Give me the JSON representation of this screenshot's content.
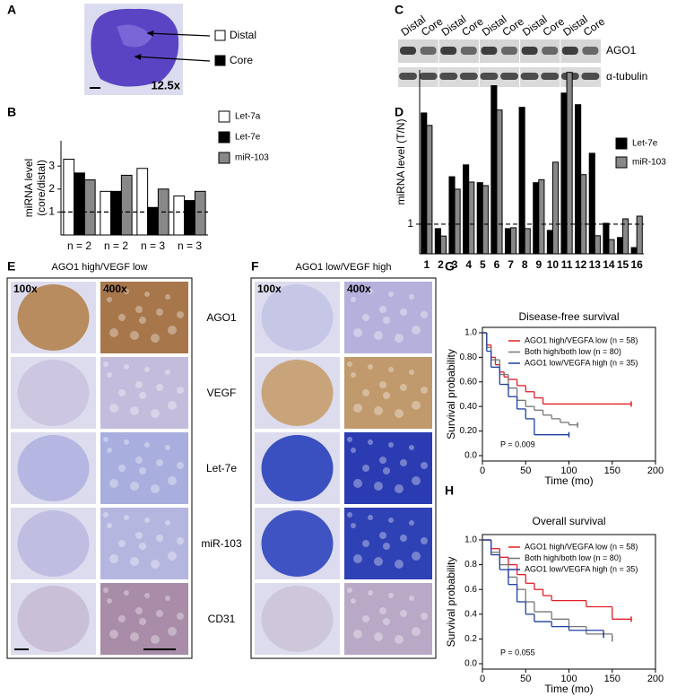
{
  "panel_labels": [
    "A",
    "B",
    "C",
    "D",
    "E",
    "F",
    "G",
    "H"
  ],
  "panel_a": {
    "distal": "Distal",
    "core": "Core",
    "magnification": "12.5x"
  },
  "panel_c": {
    "lanes": [
      "Distal",
      "Core",
      "Distal",
      "Core",
      "Distal",
      "Core",
      "Distal",
      "Core",
      "Distal",
      "Core"
    ],
    "rows": [
      "AGO1",
      "α-tubulin"
    ]
  },
  "panel_e": {
    "title": "AGO1 high/VEGF low",
    "magnifications": [
      "100x",
      "400x"
    ]
  },
  "panel_f": {
    "title": "AGO1 low/VEGF high",
    "magnifications": [
      "100x",
      "400x"
    ]
  },
  "stains": [
    "AGO1",
    "VEGF",
    "Let-7e",
    "miR-103",
    "CD31"
  ],
  "chart_data": [
    {
      "type": "bar",
      "y_label": [
        "miRNA level",
        "(core/distal)"
      ],
      "categories": [
        "n = 2",
        "n = 2",
        "n = 3",
        "n = 3"
      ],
      "series": [
        {
          "name": "Let-7a",
          "color": "#ffffff",
          "values": [
            3.3,
            1.9,
            2.9,
            1.7
          ]
        },
        {
          "name": "Let-7e",
          "color": "#000000",
          "values": [
            2.7,
            1.9,
            1.2,
            1.5
          ]
        },
        {
          "name": "miR-103",
          "color": "#888888",
          "values": [
            2.4,
            2.6,
            2.0,
            1.9
          ]
        }
      ],
      "ylim": [
        0,
        4.1
      ],
      "yticks": [
        1,
        2,
        3
      ],
      "reference_line": 1
    },
    {
      "type": "bar",
      "y_label": [
        "miRNA level (T/N)"
      ],
      "categories": [
        "1",
        "2",
        "3",
        "4",
        "5",
        "6",
        "7",
        "8",
        "9",
        "10",
        "11",
        "12",
        "13",
        "14",
        "15",
        "16"
      ],
      "series": [
        {
          "name": "Let-7e",
          "color": "#000000",
          "values": [
            4.75,
            0.85,
            2.6,
            3.0,
            2.4,
            5.67,
            0.85,
            4.94,
            2.4,
            0.79,
            5.42,
            5.03,
            3.39,
            1.03,
            0.55,
            0.21
          ]
        },
        {
          "name": "miR-103",
          "color": "#888888",
          "values": [
            4.33,
            0.6,
            2.18,
            2.42,
            2.3,
            4.85,
            0.88,
            0.85,
            2.5,
            3.09,
            6.12,
            2.67,
            0.61,
            0.48,
            1.18,
            1.27
          ]
        }
      ],
      "ylim": [
        0,
        6.2
      ],
      "yticks": [
        1
      ],
      "reference_line": 1
    },
    {
      "type": "step",
      "title": "Disease-free survival",
      "x_label": "Time (mo)",
      "y_label": "Survival probability",
      "xlim": [
        0,
        200
      ],
      "ylim": [
        0,
        1
      ],
      "xticks": [
        0,
        50,
        100,
        150,
        200
      ],
      "yticks": [
        {
          "value": 0,
          "label": "0.0"
        },
        {
          "value": 0.2,
          "label": "0.20"
        },
        {
          "value": 0.4,
          "label": "0.40"
        },
        {
          "value": 0.6,
          "label": "0.60"
        },
        {
          "value": 0.8,
          "label": "0.80"
        },
        {
          "value": 1,
          "label": "1.0"
        }
      ],
      "series": [
        {
          "name": "AGO1 high/VEGFA low (n = 58)",
          "color": "#e31e26",
          "x": [
            0,
            5,
            10,
            15,
            20,
            25,
            30,
            40,
            50,
            60,
            70,
            100,
            150,
            172
          ],
          "values": [
            1,
            0.9,
            0.8,
            0.74,
            0.68,
            0.64,
            0.62,
            0.57,
            0.52,
            0.47,
            0.42,
            0.42,
            0.42,
            0.42
          ]
        },
        {
          "name": "Both high/both low (n = 80)",
          "color": "#777777",
          "x": [
            0,
            5,
            10,
            20,
            30,
            40,
            50,
            60,
            70,
            80,
            90,
            100,
            110
          ],
          "values": [
            1,
            0.88,
            0.78,
            0.66,
            0.55,
            0.45,
            0.4,
            0.37,
            0.33,
            0.3,
            0.27,
            0.25,
            0.25
          ]
        },
        {
          "name": "AGO1 low/VEGFA high (n = 35)",
          "color": "#1f3fa0",
          "x": [
            0,
            5,
            10,
            20,
            30,
            40,
            50,
            60,
            80,
            100
          ],
          "values": [
            1,
            0.85,
            0.72,
            0.58,
            0.48,
            0.38,
            0.3,
            0.17,
            0.17,
            0.17
          ]
        }
      ],
      "annotation": "P = 0.009"
    },
    {
      "type": "step",
      "title": "Overall survival",
      "x_label": "Time (mo)",
      "y_label": "Survival probability",
      "xlim": [
        0,
        200
      ],
      "ylim": [
        0,
        1
      ],
      "xticks": [
        0,
        50,
        100,
        150,
        200
      ],
      "yticks": [
        {
          "value": 0,
          "label": "0.0"
        },
        0.2,
        0.4,
        0.6,
        0.8,
        {
          "value": 1,
          "label": "1.0"
        }
      ],
      "series": [
        {
          "name": "AGO1 high/VEGFA low (n = 58)",
          "color": "#e31e26",
          "x": [
            0,
            10,
            20,
            30,
            40,
            50,
            60,
            70,
            80,
            100,
            120,
            150,
            172
          ],
          "values": [
            1,
            0.93,
            0.86,
            0.8,
            0.72,
            0.65,
            0.6,
            0.55,
            0.51,
            0.51,
            0.46,
            0.36,
            0.36
          ]
        },
        {
          "name": "Both high/both low (n = 80)",
          "color": "#777777",
          "x": [
            0,
            10,
            20,
            30,
            40,
            50,
            60,
            80,
            100,
            120,
            150
          ],
          "values": [
            1,
            0.9,
            0.8,
            0.7,
            0.6,
            0.5,
            0.42,
            0.36,
            0.3,
            0.24,
            0.2
          ]
        },
        {
          "name": "AGO1 low/VEGFA high (n = 35)",
          "color": "#1f3fa0",
          "x": [
            0,
            10,
            20,
            30,
            40,
            50,
            60,
            80,
            100,
            140
          ],
          "values": [
            1,
            0.88,
            0.76,
            0.64,
            0.5,
            0.4,
            0.34,
            0.3,
            0.27,
            0.23
          ]
        }
      ],
      "annotation": "P = 0.055"
    }
  ]
}
